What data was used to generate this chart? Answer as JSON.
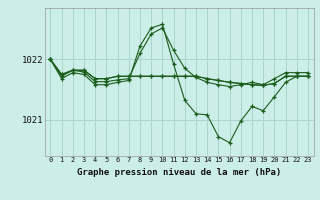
{
  "title": "Graphe pression niveau de la mer (hPa)",
  "bg_color": "#cceee8",
  "grid_color": "#aad4cc",
  "line_color": "#1a5c1a",
  "x_labels": [
    "0",
    "1",
    "2",
    "3",
    "4",
    "5",
    "6",
    "7",
    "8",
    "9",
    "10",
    "11",
    "12",
    "13",
    "14",
    "15",
    "16",
    "17",
    "18",
    "19",
    "20",
    "21",
    "22",
    "23"
  ],
  "ylim": [
    1020.4,
    1022.85
  ],
  "yticks": [
    1021,
    1022
  ],
  "series": [
    [
      1022.0,
      1021.75,
      1021.82,
      1021.82,
      1021.68,
      1021.68,
      1021.72,
      1021.72,
      1021.72,
      1021.72,
      1021.72,
      1021.72,
      1021.72,
      1021.72,
      1021.68,
      1021.65,
      1021.62,
      1021.6,
      1021.58,
      1021.57,
      1021.6,
      1021.72,
      1021.72,
      1021.72
    ],
    [
      1022.0,
      1021.75,
      1021.82,
      1021.82,
      1021.68,
      1021.68,
      1021.72,
      1021.72,
      1021.72,
      1021.72,
      1021.72,
      1021.72,
      1021.72,
      1021.72,
      1021.68,
      1021.65,
      1021.62,
      1021.6,
      1021.58,
      1021.57,
      1021.6,
      1021.72,
      1021.72,
      1021.72
    ],
    [
      1022.0,
      1021.72,
      1021.82,
      1021.79,
      1021.63,
      1021.63,
      1021.66,
      1021.68,
      1022.1,
      1022.42,
      1022.52,
      1022.15,
      1021.85,
      1021.7,
      1021.62,
      1021.58,
      1021.55,
      1021.58,
      1021.62,
      1021.58,
      1021.68,
      1021.78,
      1021.78,
      1021.78
    ],
    [
      1022.0,
      1021.68,
      1021.78,
      1021.75,
      1021.58,
      1021.58,
      1021.62,
      1021.65,
      1022.22,
      1022.52,
      1022.58,
      1021.92,
      1021.32,
      1021.1,
      1021.08,
      1020.72,
      1020.62,
      1020.98,
      1021.22,
      1021.15,
      1021.38,
      1021.62,
      1021.72,
      1021.72
    ]
  ]
}
